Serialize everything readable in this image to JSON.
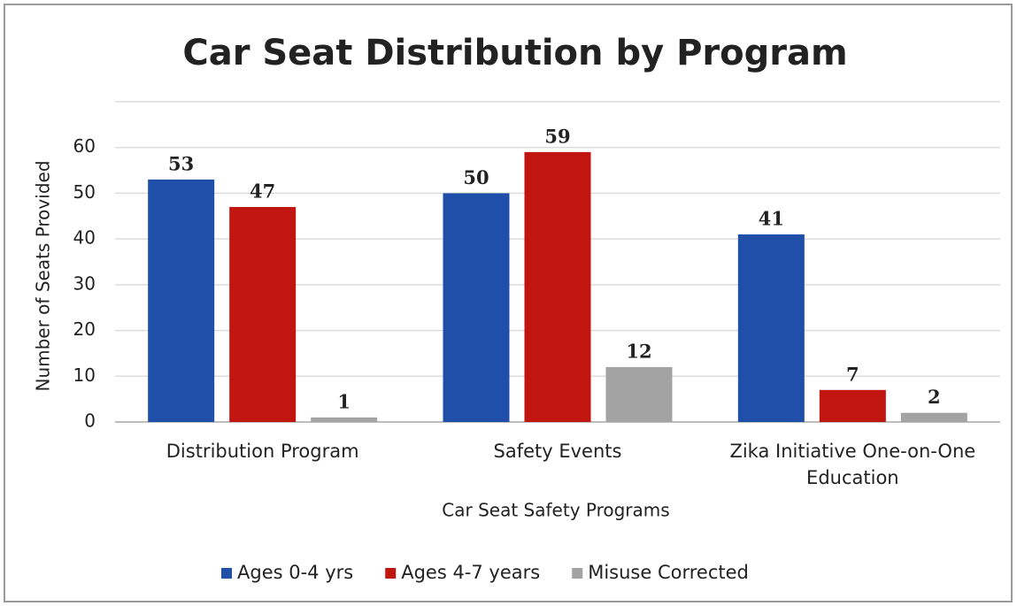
{
  "chart_data": {
    "type": "bar",
    "title": "Car Seat Distribution by Program",
    "x_label": "Car Seat Safety Programs",
    "y_label": "Number of Seats Provided",
    "categories": [
      "Distribution Program",
      "Safety Events",
      "Zika Initiative One-on-One Education"
    ],
    "series": [
      {
        "name": "Ages 0-4 yrs",
        "color": "#1f4fa8",
        "values": [
          53,
          50,
          41
        ]
      },
      {
        "name": "Ages 4-7 years",
        "color": "#c0160f",
        "values": [
          47,
          59,
          7
        ]
      },
      {
        "name": "Misuse Corrected",
        "color": "#a3a3a3",
        "values": [
          1,
          12,
          2
        ]
      }
    ],
    "ylim": [
      0,
      70
    ],
    "yticks": [
      0,
      10,
      20,
      30,
      40,
      50,
      60
    ],
    "grid": true,
    "legend": "bottom"
  }
}
